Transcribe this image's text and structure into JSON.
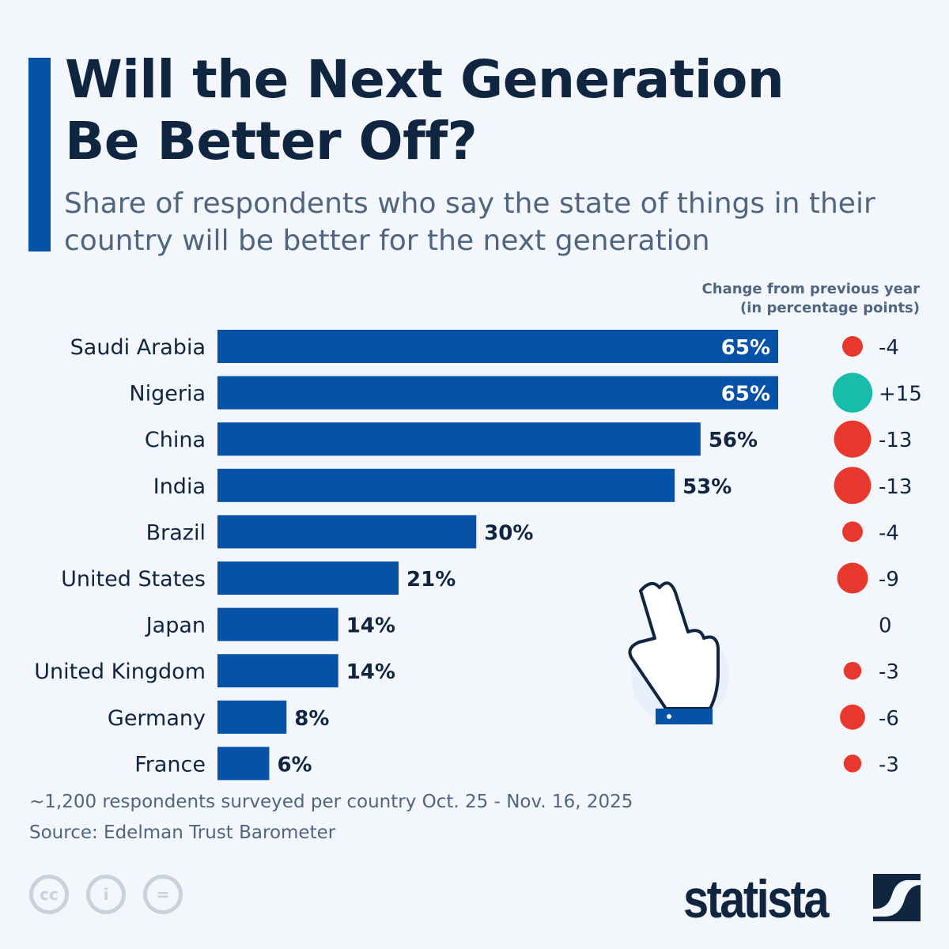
{
  "title": "Will the Next Generation Be Better Off?",
  "subtitle": "Share of respondents who say the state of things in their country will be better for the next generation",
  "change_header": [
    "Change from previous year",
    "(in percentage points)"
  ],
  "footnote": "~1,200 respondents surveyed per country Oct. 25 - Nov. 16, 2025",
  "source": "Source: Edelman Trust Barometer",
  "logo": "statista",
  "colors": {
    "bar": "#0552a8",
    "positive": "#17bdaa",
    "negative": "#e8372c",
    "text": "#0f2540"
  },
  "chart_data": {
    "type": "bar",
    "orientation": "horizontal",
    "categories": [
      "Saudi Arabia",
      "Nigeria",
      "China",
      "India",
      "Brazil",
      "United States",
      "Japan",
      "United Kingdom",
      "Germany",
      "France"
    ],
    "values": [
      65,
      65,
      56,
      53,
      30,
      21,
      14,
      14,
      8,
      6
    ],
    "value_labels": [
      "65%",
      "65%",
      "56%",
      "53%",
      "30%",
      "21%",
      "14%",
      "14%",
      "8%",
      "6%"
    ],
    "change": [
      -4,
      15,
      -13,
      -13,
      -4,
      -9,
      0,
      -3,
      -6,
      -3
    ],
    "change_labels": [
      "-4",
      "+15",
      "-13",
      "-13",
      "-4",
      "-9",
      "0",
      "-3",
      "-6",
      "-3"
    ],
    "unit": "%"
  }
}
